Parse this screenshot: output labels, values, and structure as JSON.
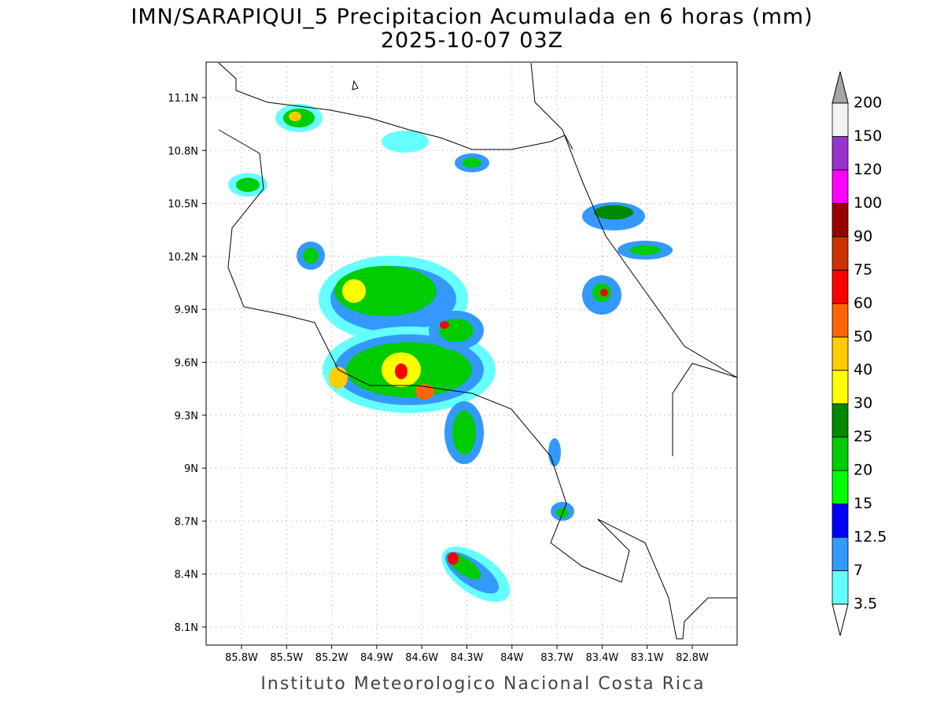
{
  "header": {
    "title": "IMN/SARAPIQUI_5 Precipitacion Acumulada en 6 horas (mm)",
    "subtitle": "2025-10-07 03Z"
  },
  "map": {
    "lat_labels": [
      "11.1N",
      "10.8N",
      "10.5N",
      "10.2N",
      "9.9N",
      "9.6N",
      "9.3N",
      "9N",
      "8.7N",
      "8.4N",
      "8.1N"
    ],
    "lon_labels": [
      "85.8W",
      "85.5W",
      "85.2W",
      "84.9W",
      "84.6W",
      "84.3W",
      "84W",
      "83.7W",
      "83.4W",
      "83.1W",
      "82.8W"
    ]
  },
  "colorbar": {
    "levels": [
      3.5,
      7,
      12.5,
      15,
      20,
      25,
      30,
      40,
      50,
      60,
      75,
      90,
      100,
      120,
      150,
      200
    ],
    "colors": [
      "#66ffff",
      "#3399ff",
      "#0000ff",
      "#00ff00",
      "#00cc00",
      "#008800",
      "#ffff00",
      "#ffcc00",
      "#ff6600",
      "#ff0000",
      "#cc3300",
      "#990000",
      "#ff00ff",
      "#9933cc",
      "#f2f2f2"
    ],
    "under_color": "#ffffff",
    "over_color": "#a6a6a6"
  },
  "footer": "Instituto Meteorologico Nacional Costa Rica"
}
